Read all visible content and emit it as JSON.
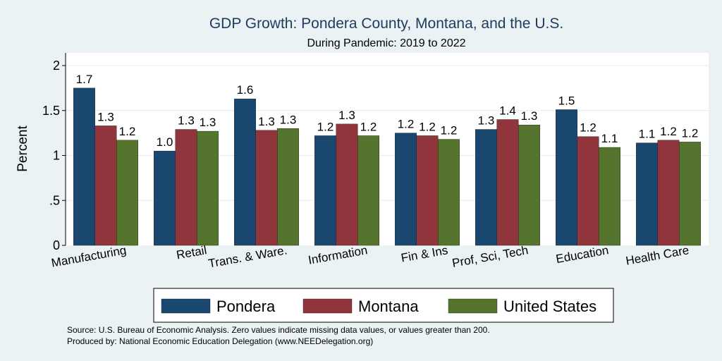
{
  "chart_data": {
    "type": "bar",
    "title": "GDP Growth: Pondera County, Montana, and the U.S.",
    "subtitle": "During Pandemic: 2019 to 2022",
    "ylabel": "Percent",
    "xlabel": "",
    "ylim": [
      0,
      2.1
    ],
    "yticks": [
      {
        "value": 0,
        "label": "0"
      },
      {
        "value": 0.5,
        "label": ".5"
      },
      {
        "value": 1,
        "label": "1"
      },
      {
        "value": 1.5,
        "label": "1.5"
      },
      {
        "value": 2,
        "label": "2"
      }
    ],
    "grid": true,
    "legend_position": "bottom",
    "categories": [
      "Manufacturing",
      "Retail",
      "Trans. & Ware.",
      "Information",
      "Fin & Ins",
      "Prof, Sci, Tech",
      "Education",
      "Health Care"
    ],
    "series": [
      {
        "name": "Pondera",
        "color": "#1a476f",
        "values": [
          1.75,
          1.05,
          1.63,
          1.22,
          1.25,
          1.29,
          1.51,
          1.14
        ],
        "labels": [
          "1.7",
          "1.0",
          "1.6",
          "1.2",
          "1.2",
          "1.3",
          "1.5",
          "1.1"
        ]
      },
      {
        "name": "Montana",
        "color": "#90353b",
        "values": [
          1.33,
          1.29,
          1.28,
          1.35,
          1.22,
          1.4,
          1.21,
          1.17
        ],
        "labels": [
          "1.3",
          "1.3",
          "1.3",
          "1.3",
          "1.2",
          "1.4",
          "1.2",
          "1.2"
        ]
      },
      {
        "name": "United States",
        "color": "#55752f",
        "values": [
          1.17,
          1.27,
          1.3,
          1.22,
          1.18,
          1.34,
          1.09,
          1.15
        ],
        "labels": [
          "1.2",
          "1.3",
          "1.3",
          "1.2",
          "1.2",
          "1.3",
          "1.1",
          "1.2"
        ]
      }
    ],
    "notes": [
      "Source: U.S. Bureau of Economic Analysis. Zero values indicate missing data values, or values greater than 200.",
      "Produced by: National Economic Education Delegation (www.NEEDelegation.org)"
    ]
  }
}
